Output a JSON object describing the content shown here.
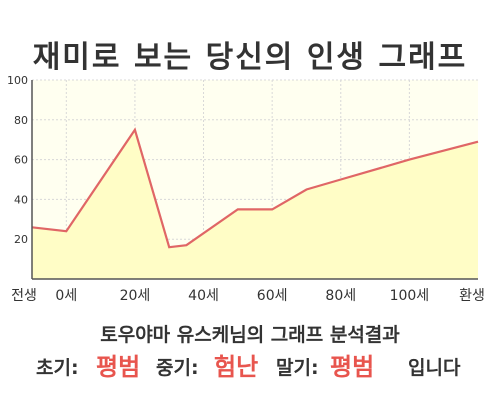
{
  "header": {
    "title": "재미로 보는 당신의 인생 그래프"
  },
  "chart_data": {
    "type": "area",
    "x": [
      -10,
      0,
      20,
      30,
      35,
      50,
      60,
      70,
      80,
      100,
      120
    ],
    "values": [
      26,
      24,
      75,
      16,
      17,
      35,
      35,
      45,
      50,
      60,
      69
    ],
    "x_ticks": [
      {
        "x": -10,
        "label": "전생"
      },
      {
        "x": 0,
        "label": "0세"
      },
      {
        "x": 20,
        "label": "20세"
      },
      {
        "x": 40,
        "label": "40세"
      },
      {
        "x": 60,
        "label": "60세"
      },
      {
        "x": 80,
        "label": "80세"
      },
      {
        "x": 100,
        "label": "100세"
      },
      {
        "x": 120,
        "label": "환생"
      }
    ],
    "y_ticks": [
      20,
      40,
      60,
      80,
      100
    ],
    "ylim": [
      0,
      100
    ],
    "xlim": [
      -10,
      120
    ],
    "grid": true,
    "colors": {
      "line": "#e06666",
      "fill": "#fffdc6",
      "plot_bg": "#fffff0",
      "grid": "#d8d8d8"
    }
  },
  "result": {
    "line1": "토우야마 유스케님의 그래프 분석결과",
    "early_label": "초기:",
    "early_value": "평범",
    "middle_label": "중기:",
    "middle_value": "험난",
    "late_label": "말기:",
    "late_value": "평범",
    "suffix": "입니다"
  }
}
